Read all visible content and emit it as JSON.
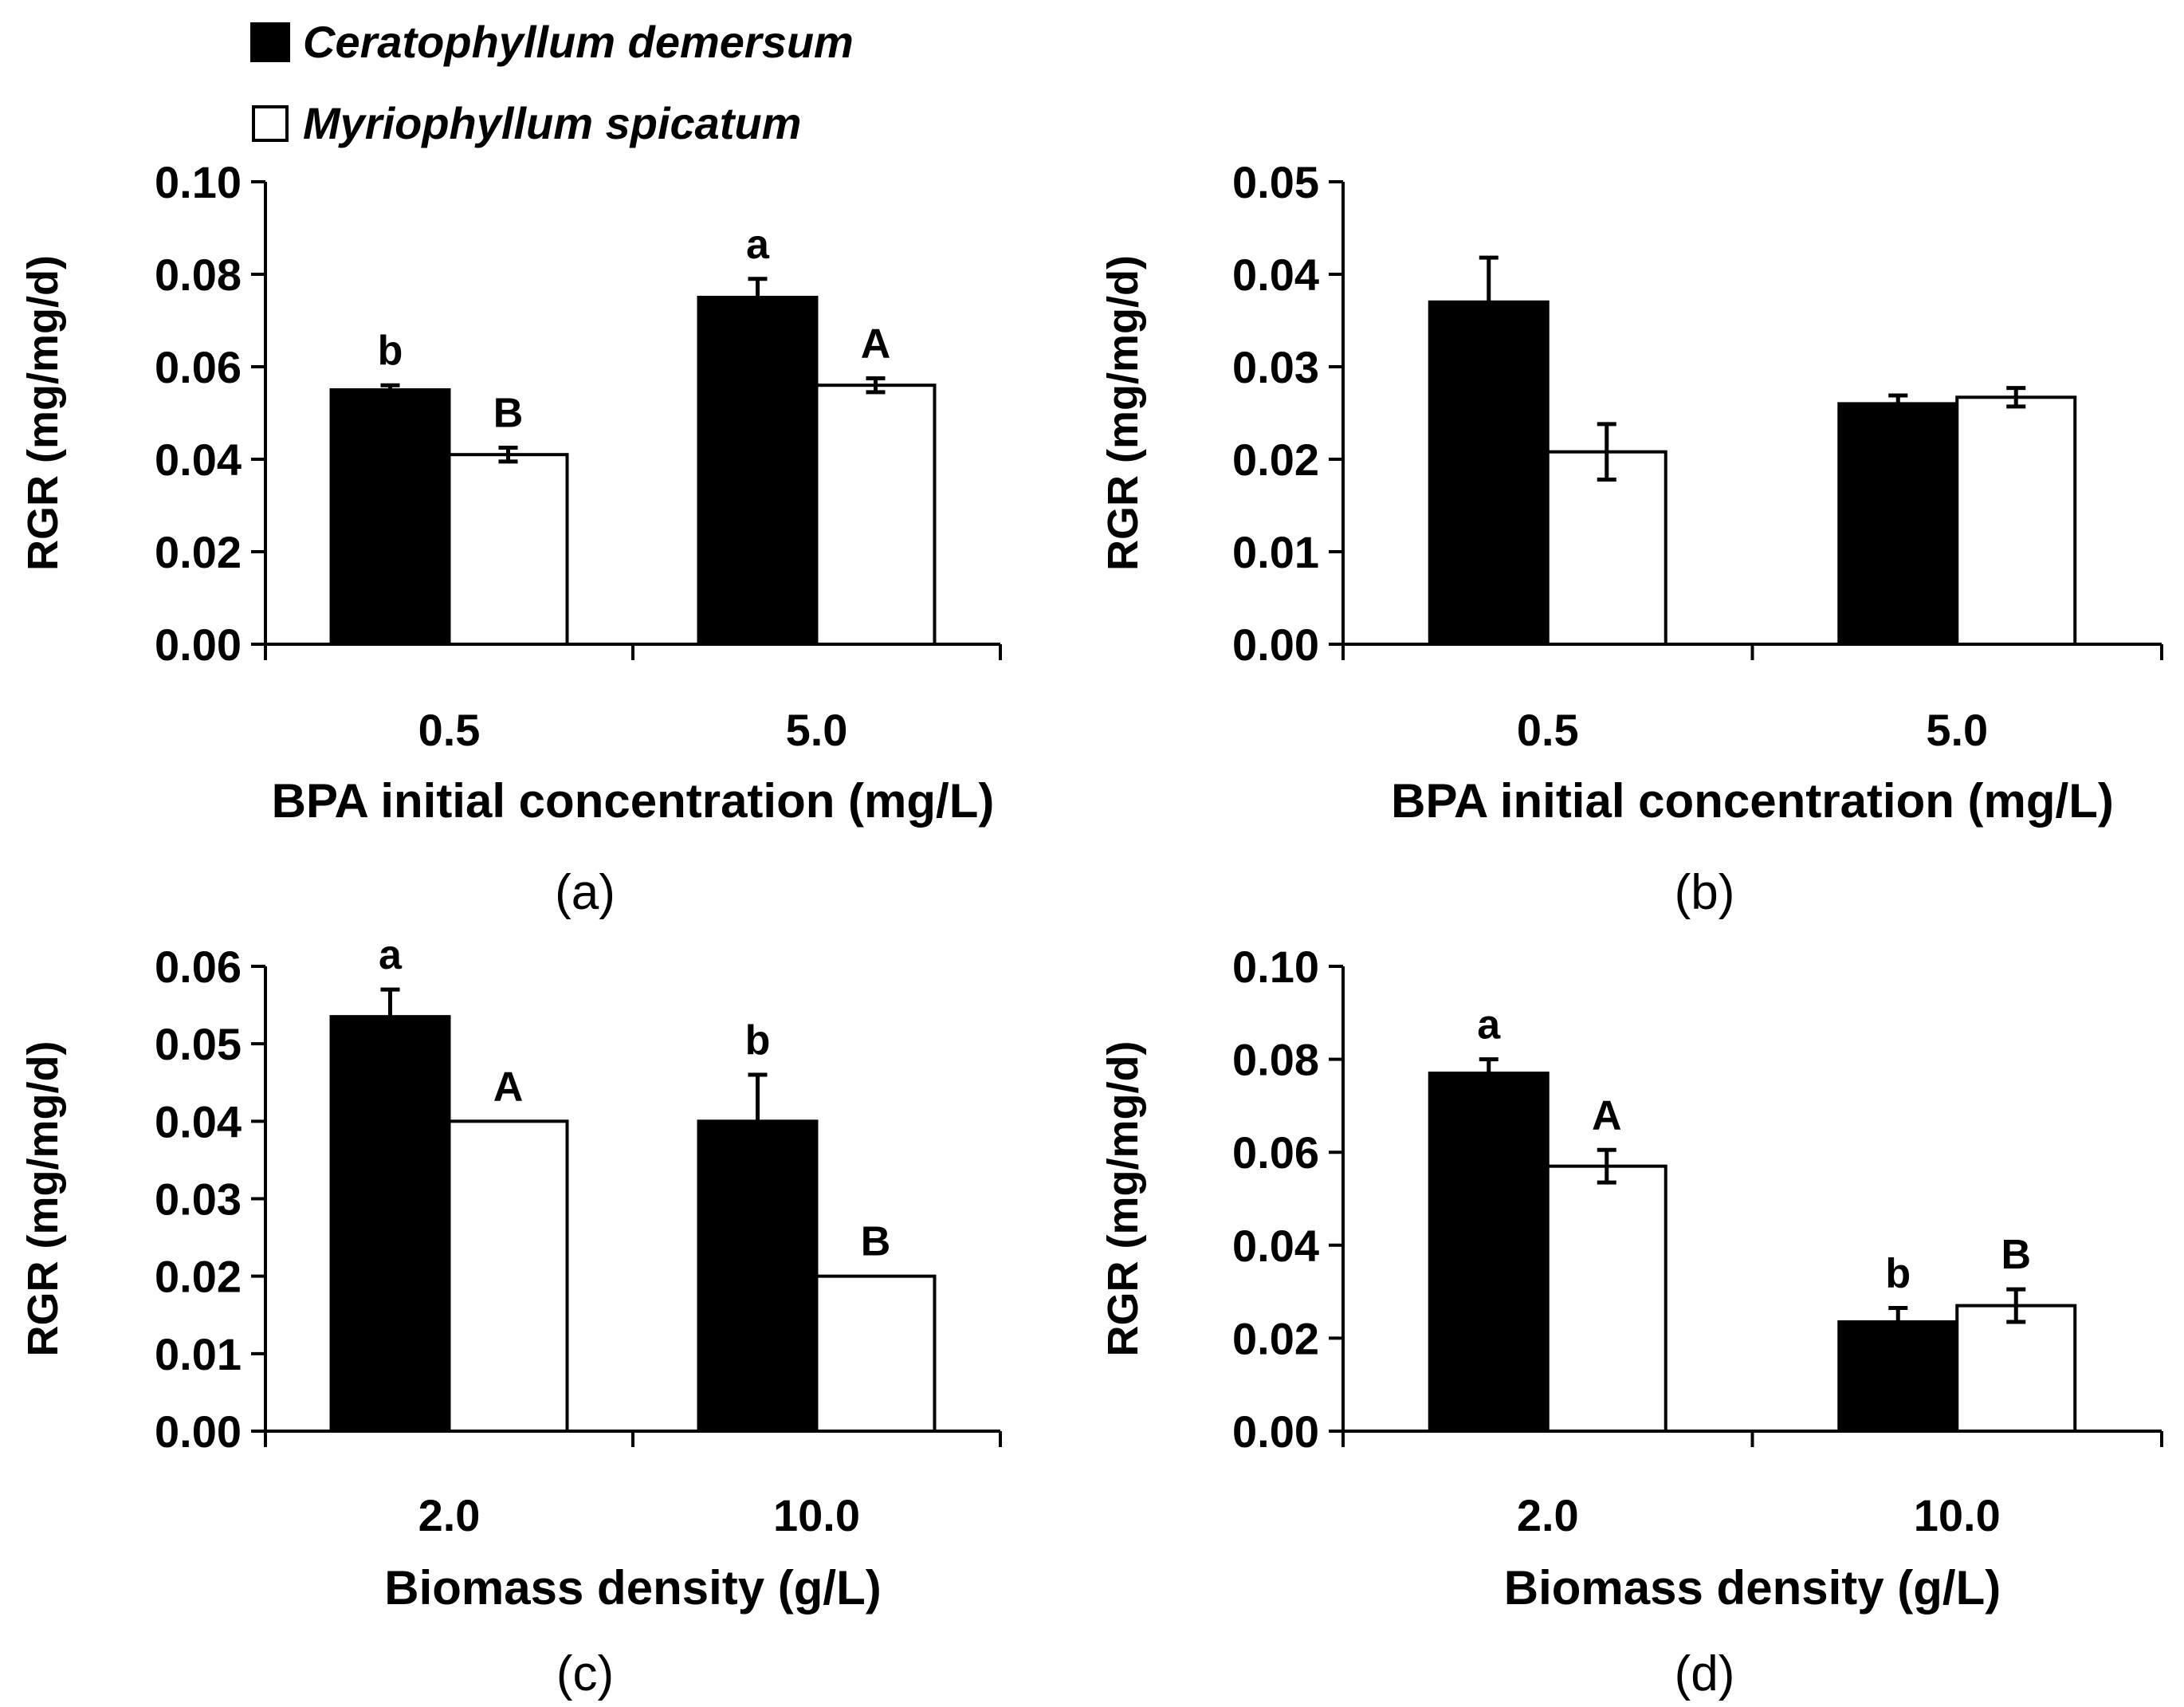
{
  "legend": {
    "series": [
      {
        "name": "Ceratophyllum demersum",
        "color": "#000000"
      },
      {
        "name": "Myriophyllum spicatum",
        "color": "#ffffff"
      }
    ]
  },
  "chart_data": [
    {
      "type": "bar",
      "panel": "(a)",
      "categories": [
        "0.5",
        "5.0"
      ],
      "series": [
        {
          "name": "Ceratophyllum demersum",
          "values": [
            0.055,
            0.075
          ],
          "errors": [
            0.001,
            0.004
          ],
          "letters": [
            "b",
            "a"
          ]
        },
        {
          "name": "Myriophyllum spicatum",
          "values": [
            0.041,
            0.056
          ],
          "errors": [
            0.0015,
            0.0015
          ],
          "letters": [
            "B",
            "A"
          ]
        }
      ],
      "xlabel": "BPA initial concentration (mg/L)",
      "ylabel": "RGR (mg/mg/d)",
      "ylim": [
        0,
        0.1
      ],
      "ytick_labels": [
        "0.00",
        "0.02",
        "0.04",
        "0.06",
        "0.08",
        "0.10"
      ]
    },
    {
      "type": "bar",
      "panel": "(b)",
      "categories": [
        "0.5",
        "5.0"
      ],
      "series": [
        {
          "name": "Ceratophyllum demersum",
          "values": [
            0.037,
            0.026
          ],
          "errors": [
            0.0048,
            0.0009
          ],
          "letters": [
            "",
            ""
          ]
        },
        {
          "name": "Myriophyllum spicatum",
          "values": [
            0.0208,
            0.0267
          ],
          "errors": [
            0.003,
            0.001
          ],
          "letters": [
            "",
            ""
          ]
        }
      ],
      "xlabel": "BPA initial concentration (mg/L)",
      "ylabel": "RGR (mg/mg/d)",
      "ylim": [
        0,
        0.05
      ],
      "ytick_labels": [
        "0.00",
        "0.01",
        "0.02",
        "0.03",
        "0.04",
        "0.05"
      ]
    },
    {
      "type": "bar",
      "panel": "(c)",
      "categories": [
        "2.0",
        "10.0"
      ],
      "series": [
        {
          "name": "Ceratophyllum demersum",
          "values": [
            0.0535,
            0.04
          ],
          "errors": [
            0.0035,
            0.006
          ],
          "letters": [
            "a",
            "b"
          ]
        },
        {
          "name": "Myriophyllum spicatum",
          "values": [
            0.04,
            0.02
          ],
          "errors": [
            0,
            0
          ],
          "letters": [
            "A",
            "B"
          ]
        }
      ],
      "xlabel": "Biomass density (g/L)",
      "ylabel": "RGR (mg/mg/d)",
      "ylim": [
        0,
        0.06
      ],
      "ytick_labels": [
        "0.00",
        "0.01",
        "0.02",
        "0.03",
        "0.04",
        "0.05",
        "0.06"
      ]
    },
    {
      "type": "bar",
      "panel": "(d)",
      "categories": [
        "2.0",
        "10.0"
      ],
      "series": [
        {
          "name": "Ceratophyllum demersum",
          "values": [
            0.077,
            0.0235
          ],
          "errors": [
            0.003,
            0.003
          ],
          "letters": [
            "a",
            "b"
          ]
        },
        {
          "name": "Myriophyllum spicatum",
          "values": [
            0.057,
            0.027
          ],
          "errors": [
            0.0035,
            0.0035
          ],
          "letters": [
            "A",
            "B"
          ]
        }
      ],
      "xlabel": "Biomass density (g/L)",
      "ylabel": "RGR (mg/mg/d)",
      "ylim": [
        0,
        0.1
      ],
      "ytick_labels": [
        "0.00",
        "0.02",
        "0.04",
        "0.06",
        "0.08",
        "0.10"
      ]
    }
  ]
}
